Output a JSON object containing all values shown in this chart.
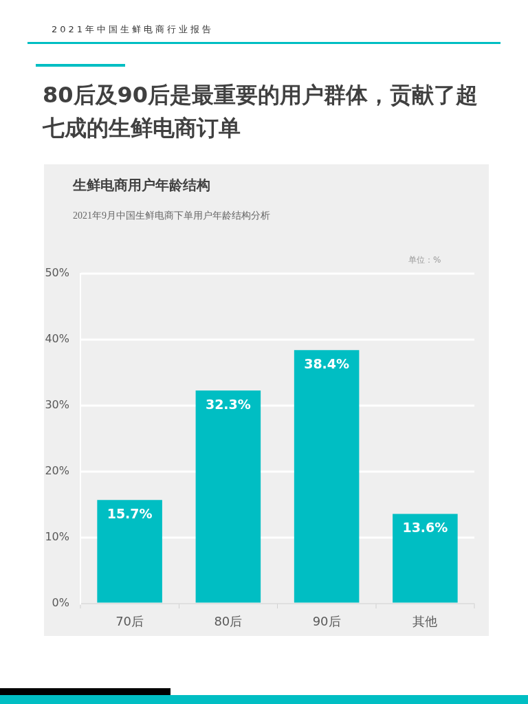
{
  "chart_data": {
    "type": "bar",
    "title": "生鲜电商用户年龄结构",
    "subtitle": "2021年9月中国生鲜电商下单用户年龄结构分析",
    "annotations": [
      "2021年中国生鲜电商行业报告",
      "80后及90后是最重要的用户群体，贡献了超七成的生鲜电商订单",
      "单位：%"
    ],
    "categories": [
      "70后",
      "80后",
      "90后",
      "其他"
    ],
    "values": [
      15.7,
      32.3,
      38.4,
      13.6
    ],
    "color": "#00bec3",
    "value_labels": [
      "15.7%",
      "32.3%",
      "38.4%",
      "13.6%"
    ],
    "ylim": [
      0,
      50
    ],
    "yticks": [
      {
        "value": 0,
        "label": "0%"
      },
      {
        "value": 10,
        "label": "10%"
      },
      {
        "value": 20,
        "label": "20%"
      },
      {
        "value": 30,
        "label": "30%"
      },
      {
        "value": 40,
        "label": "40%"
      },
      {
        "value": 50,
        "label": "50%"
      }
    ],
    "grid": "y"
  }
}
